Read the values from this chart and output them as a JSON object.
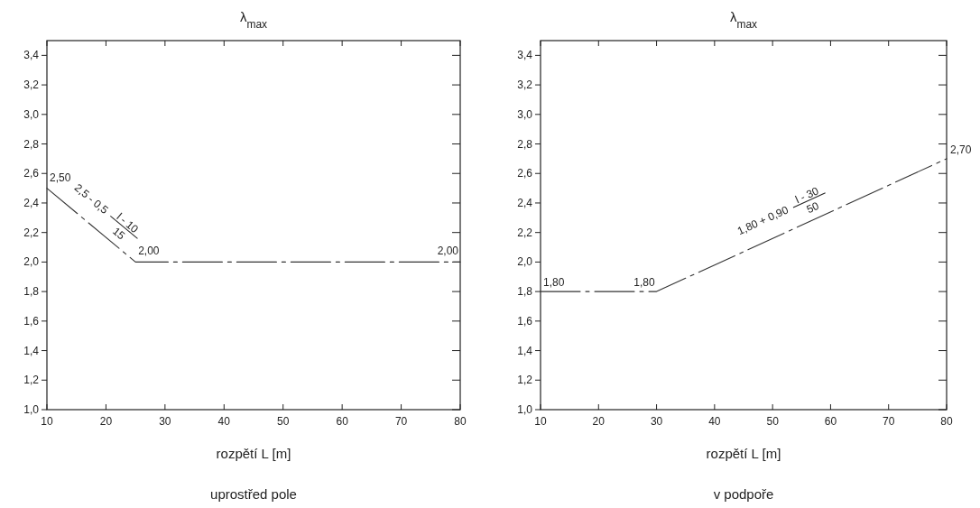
{
  "chart_data": [
    {
      "type": "line",
      "title": "λ$_{max}$",
      "xlabel": "rozpětí L [m]",
      "x": [
        10,
        25,
        80
      ],
      "series": [
        {
          "color": "#333333",
          "values": [
            2.5,
            2.0,
            2.0
          ]
        }
      ],
      "xlim": [
        10,
        80
      ],
      "ylim": [
        1.0,
        3.5
      ],
      "xticks": [
        10,
        20,
        30,
        40,
        50,
        60,
        70,
        80
      ],
      "yticks": [
        {
          "value": 1.0,
          "label": "1,0"
        },
        {
          "value": 1.2,
          "label": "1,2"
        },
        {
          "value": 1.4,
          "label": "1,4"
        },
        {
          "value": 1.6,
          "label": "1,6"
        },
        {
          "value": 1.8,
          "label": "1,8"
        },
        {
          "value": 2.0,
          "label": "2,0"
        },
        {
          "value": 2.2,
          "label": "2,2"
        },
        {
          "value": 2.4,
          "label": "2,4"
        },
        {
          "value": 2.6,
          "label": "2,6"
        },
        {
          "value": 2.8,
          "label": "2,8"
        },
        {
          "value": 3.0,
          "label": "3,0"
        },
        {
          "value": 3.2,
          "label": "3,2"
        },
        {
          "value": 3.4,
          "label": "3,4"
        }
      ],
      "grid": false,
      "marker": "none",
      "line_style": "dashed",
      "annotations": [
        {
          "text": "2,50",
          "x": 10,
          "y": 2.5
        },
        {
          "text": "2,00",
          "x": 25,
          "y": 2.0
        },
        {
          "text": "2,00",
          "x": 80,
          "y": 2.0
        },
        {
          "text": "2,5 - 0,5 $^{l - 10}$$_{15}$",
          "x": 17,
          "y": 2.27
        },
        "uprostřed pole"
      ]
    },
    {
      "type": "line",
      "title": "λ$_{max}$",
      "xlabel": "rozpětí L [m]",
      "x": [
        10,
        30,
        80
      ],
      "series": [
        {
          "color": "#333333",
          "values": [
            1.8,
            1.8,
            2.7
          ]
        }
      ],
      "xlim": [
        10,
        80
      ],
      "ylim": [
        1.0,
        3.5
      ],
      "xticks": [
        10,
        20,
        30,
        40,
        50,
        60,
        70,
        80
      ],
      "yticks": [
        {
          "value": 1.0,
          "label": "1,0"
        },
        {
          "value": 1.2,
          "label": "1,2"
        },
        {
          "value": 1.4,
          "label": "1,4"
        },
        {
          "value": 1.6,
          "label": "1,6"
        },
        {
          "value": 1.8,
          "label": "1,8"
        },
        {
          "value": 2.0,
          "label": "2,0"
        },
        {
          "value": 2.2,
          "label": "2,2"
        },
        {
          "value": 2.4,
          "label": "2,4"
        },
        {
          "value": 2.6,
          "label": "2,6"
        },
        {
          "value": 2.8,
          "label": "2,8"
        },
        {
          "value": 3.0,
          "label": "3,0"
        },
        {
          "value": 3.2,
          "label": "3,2"
        },
        {
          "value": 3.4,
          "label": "3,4"
        }
      ],
      "grid": false,
      "marker": "none",
      "line_style": "dashed",
      "annotations": [
        {
          "text": "1,80",
          "x": 10,
          "y": 1.8
        },
        {
          "text": "1,80",
          "x": 30,
          "y": 1.8
        },
        {
          "text": "2,70",
          "x": 80,
          "y": 2.7
        },
        {
          "text": "1,80 + 0,90 $^{l - 30}$$_{50}$",
          "x": 52,
          "y": 2.2
        },
        "v podpoře"
      ]
    }
  ]
}
